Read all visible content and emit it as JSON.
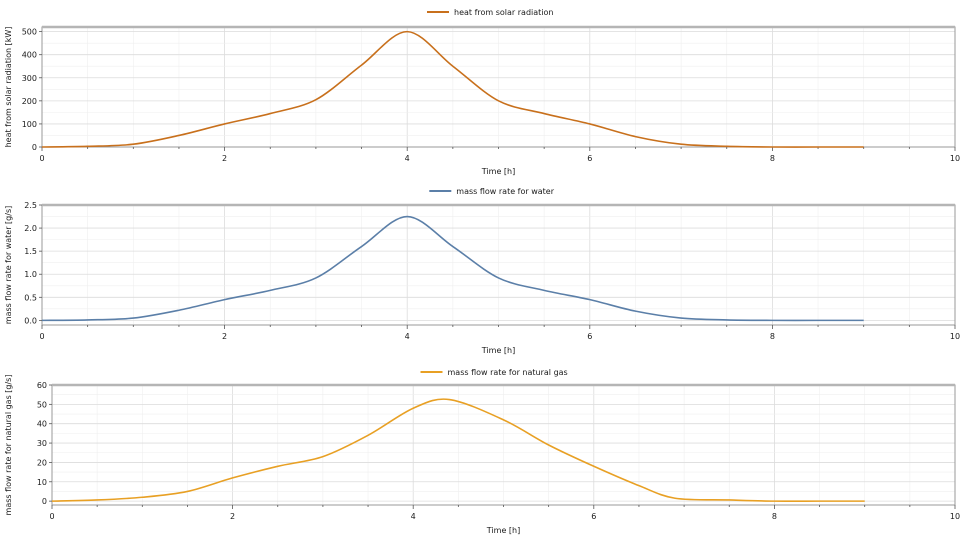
{
  "chart_data": [
    {
      "type": "line",
      "xlabel": "Time [h]",
      "ylabel": "heat from solar radiation [kW]",
      "xlim": [
        0,
        10
      ],
      "ylim": [
        0,
        520
      ],
      "xticks": [
        0,
        2,
        4,
        6,
        8,
        10
      ],
      "yticks": [
        0,
        100,
        200,
        300,
        400,
        500
      ],
      "grid": true,
      "legend_position": "top-center",
      "series": [
        {
          "name": "heat from solar radiation",
          "color": "#c8701c",
          "x": [
            0,
            0.5,
            1,
            1.5,
            2,
            2.5,
            3,
            3.5,
            4,
            4.5,
            5,
            5.5,
            6,
            6.5,
            7,
            7.5,
            8,
            8.5,
            9
          ],
          "y": [
            0,
            3,
            12,
            50,
            100,
            145,
            205,
            355,
            500,
            350,
            200,
            145,
            100,
            45,
            12,
            3,
            0,
            0,
            0
          ]
        }
      ]
    },
    {
      "type": "line",
      "xlabel": "Time [h]",
      "ylabel": "mass flow rate for water [g/s]",
      "xlim": [
        0,
        10
      ],
      "ylim": [
        -0.1,
        2.5
      ],
      "xticks": [
        0,
        2,
        4,
        6,
        8,
        10
      ],
      "yticks": [
        "0.0",
        "0.5",
        "1.0",
        "1.5",
        "2.0",
        "2.5"
      ],
      "grid": true,
      "legend_position": "top-center",
      "series": [
        {
          "name": "mass flow rate for water",
          "color": "#5b7fa8",
          "x": [
            0,
            0.5,
            1,
            1.5,
            2,
            2.5,
            3,
            3.5,
            4,
            4.5,
            5,
            5.5,
            6,
            6.5,
            7,
            7.5,
            8,
            8.5,
            9
          ],
          "y": [
            0,
            0.01,
            0.05,
            0.22,
            0.45,
            0.65,
            0.92,
            1.6,
            2.25,
            1.6,
            0.92,
            0.65,
            0.45,
            0.2,
            0.05,
            0.01,
            0,
            0,
            0
          ]
        }
      ]
    },
    {
      "type": "line",
      "xlabel": "Time [h]",
      "ylabel": "mass flow rate for natural gas [g/s]",
      "xlim": [
        0,
        10
      ],
      "ylim": [
        -2,
        60
      ],
      "xticks": [
        0,
        2,
        4,
        6,
        8,
        10
      ],
      "yticks": [
        0,
        10,
        20,
        30,
        40,
        50,
        60
      ],
      "grid": true,
      "legend_position": "top-center",
      "series": [
        {
          "name": "mass flow rate for natural gas",
          "color": "#e8a024",
          "x": [
            0,
            0.5,
            1,
            1.5,
            2,
            2.5,
            3,
            3.5,
            4,
            4.4,
            5,
            5.5,
            6,
            6.5,
            6.9,
            7.5,
            8,
            8.5,
            9
          ],
          "y": [
            0,
            0.6,
            2,
            5,
            12,
            18,
            23,
            34,
            48,
            52.5,
            42,
            29,
            18,
            8,
            1.5,
            0.6,
            0,
            0,
            0
          ]
        }
      ]
    }
  ]
}
